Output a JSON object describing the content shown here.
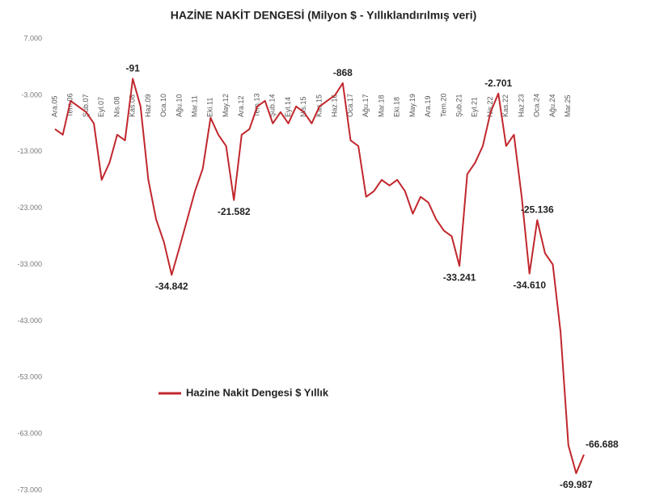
{
  "chart_data": {
    "type": "line",
    "title": "HAZİNE NAKİT DENGESİ (Milyon $ - Yıllıklandırılmış veri)",
    "categories": [
      "Ara.05",
      null,
      "Tem.06",
      null,
      "Şub.07",
      null,
      "Eyl.07",
      null,
      "Nis.08",
      null,
      "Kas.08",
      null,
      "Haz.09",
      null,
      "Oca.10",
      null,
      "Ağu.10",
      null,
      "Mar.11",
      null,
      "Eki.11",
      null,
      "May.12",
      null,
      "Ara.12",
      null,
      "Tem.13",
      null,
      "Şub.14",
      null,
      "Eyl.14",
      null,
      "Nis.15",
      null,
      "Kas.15",
      null,
      "Haz.16",
      null,
      "Oca.17",
      null,
      "Ağu.17",
      null,
      "Mar.18",
      null,
      "Eki.18",
      null,
      "May.19",
      null,
      "Ara.19",
      null,
      "Tem.20",
      null,
      "Şub.21",
      null,
      "Eyl.21",
      null,
      "Nis.22",
      null,
      "Kas.22",
      null,
      "Haz.23",
      null,
      "Oca.24",
      null,
      "Ağu.24",
      null,
      "Mar.25",
      null,
      null
    ],
    "series": [
      {
        "name": "Hazine Nakit Dengesi $ Yıllık",
        "color": "#c0272d",
        "values": [
          -9000,
          -10000,
          -4000,
          -5000,
          -6000,
          -8000,
          -18000,
          -15000,
          -10000,
          -11000,
          -91,
          -5000,
          -18000,
          -25000,
          -29000,
          -34842,
          -30000,
          -25000,
          -20000,
          -16000,
          -7000,
          -10000,
          -12000,
          -21582,
          -10000,
          -9000,
          -5000,
          -4000,
          -8000,
          -6000,
          -8000,
          -5000,
          -6000,
          -8000,
          -5000,
          -4000,
          -3000,
          -868,
          -11000,
          -12000,
          -21000,
          -20000,
          -18000,
          -19000,
          -18000,
          -20000,
          -24000,
          -21000,
          -22000,
          -25000,
          -27000,
          -28000,
          -33241,
          -17000,
          -15000,
          -12000,
          -6000,
          -2701,
          -12000,
          -10000,
          -21000,
          -34610,
          -25136,
          -31000,
          -33000,
          -45000,
          -65000,
          -69987,
          -66688
        ],
        "value_labels": [
          null,
          null,
          null,
          null,
          null,
          null,
          null,
          null,
          null,
          null,
          "-91",
          null,
          null,
          null,
          null,
          "-34.842",
          null,
          null,
          null,
          null,
          null,
          null,
          null,
          "-21.582",
          null,
          null,
          null,
          null,
          null,
          null,
          null,
          null,
          null,
          null,
          null,
          null,
          null,
          "-868",
          null,
          null,
          null,
          null,
          null,
          null,
          null,
          null,
          null,
          null,
          null,
          null,
          null,
          null,
          "-33.241",
          null,
          null,
          null,
          null,
          "-2.701",
          null,
          null,
          null,
          "-34.610",
          "-25.136",
          null,
          null,
          null,
          null,
          "-69.987",
          "-66.688"
        ]
      }
    ],
    "ylim": [
      -73000,
      7000
    ],
    "yticks": [
      {
        "value": 7000,
        "label": "7.000"
      },
      {
        "value": -3000,
        "label": "-3.000"
      },
      {
        "value": -13000,
        "label": "-13.000"
      },
      {
        "value": -23000,
        "label": "-23.000"
      },
      {
        "value": -33000,
        "label": "-33.000"
      },
      {
        "value": -43000,
        "label": "-43.000"
      },
      {
        "value": -53000,
        "label": "-53.000"
      },
      {
        "value": -63000,
        "label": "-63.000"
      },
      {
        "value": -73000,
        "label": "-73.000"
      }
    ],
    "grid": false
  }
}
